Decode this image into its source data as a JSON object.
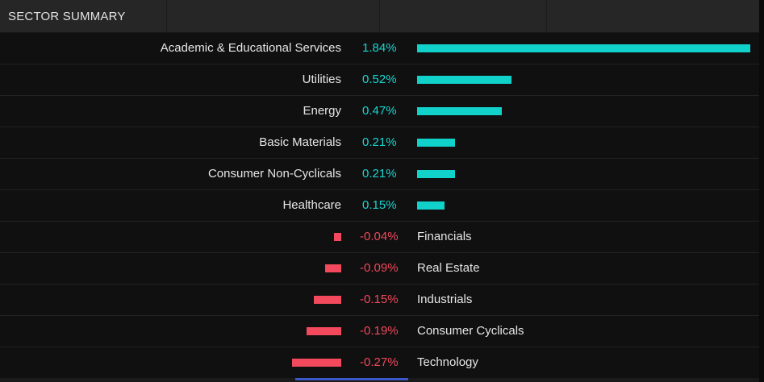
{
  "panel": {
    "title": "SECTOR SUMMARY"
  },
  "colors": {
    "positive": "#11d1cb",
    "negative": "#f2495c",
    "background": "#101010",
    "header": "#262626"
  },
  "chart_data": {
    "type": "bar",
    "orientation": "horizontal-diverging",
    "title": "SECTOR SUMMARY",
    "unit": "%",
    "rows": [
      {
        "name": "Academic & Educational Services",
        "value": 1.84,
        "display": "1.84%"
      },
      {
        "name": "Utilities",
        "value": 0.52,
        "display": "0.52%"
      },
      {
        "name": "Energy",
        "value": 0.47,
        "display": "0.47%"
      },
      {
        "name": "Basic Materials",
        "value": 0.21,
        "display": "0.21%"
      },
      {
        "name": "Consumer Non-Cyclicals",
        "value": 0.21,
        "display": "0.21%"
      },
      {
        "name": "Healthcare",
        "value": 0.15,
        "display": "0.15%"
      },
      {
        "name": "Financials",
        "value": -0.04,
        "display": "-0.04%"
      },
      {
        "name": "Real Estate",
        "value": -0.09,
        "display": "-0.09%"
      },
      {
        "name": "Industrials",
        "value": -0.15,
        "display": "-0.15%"
      },
      {
        "name": "Consumer Cyclicals",
        "value": -0.19,
        "display": "-0.19%"
      },
      {
        "name": "Technology",
        "value": -0.27,
        "display": "-0.27%"
      }
    ]
  }
}
